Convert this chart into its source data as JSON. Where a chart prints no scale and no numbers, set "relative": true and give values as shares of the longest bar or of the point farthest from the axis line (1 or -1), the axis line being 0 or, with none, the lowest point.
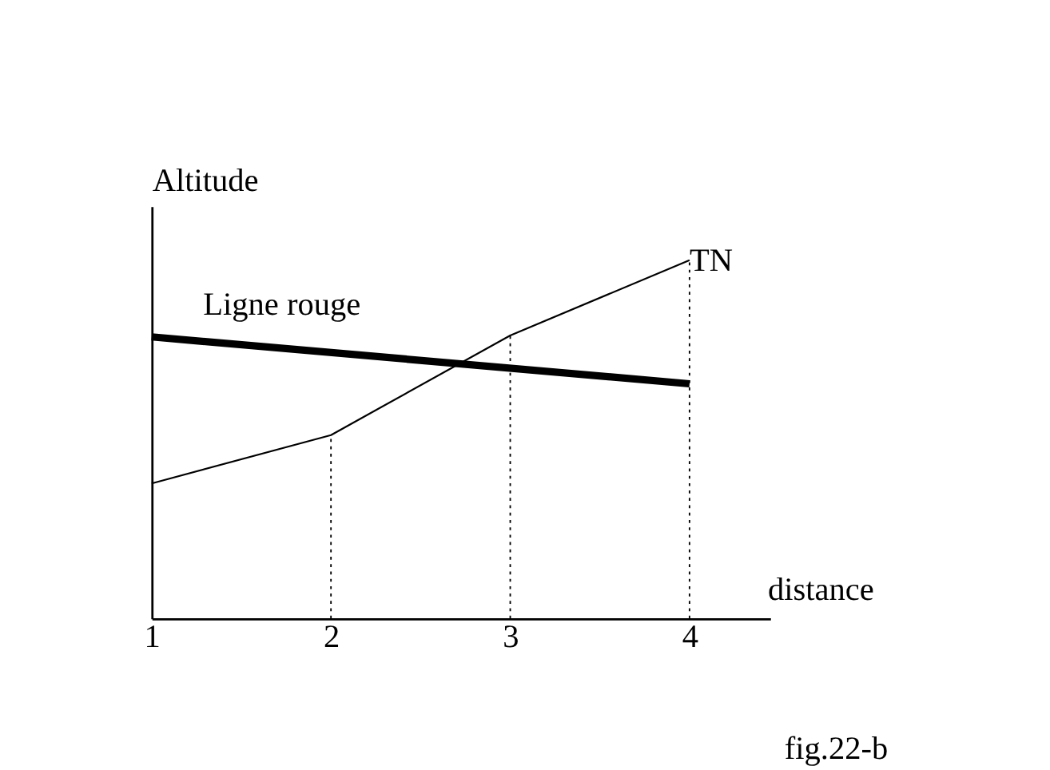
{
  "chart_data": {
    "type": "line",
    "xlabel": "distance",
    "ylabel": "Altitude",
    "relative": true,
    "x": [
      1,
      2,
      3,
      4
    ],
    "xlim": [
      1,
      4.45
    ],
    "xticks": [
      1,
      2,
      3,
      4
    ],
    "legend": false,
    "marker": "none",
    "line_style": "solid",
    "series": [
      {
        "name": "TN",
        "color": "#000000",
        "values": [
          0.377,
          0.512,
          0.79,
          1
        ]
      },
      {
        "name": "Ligne rouge",
        "color": "#000000",
        "x": [
          1,
          4
        ],
        "values": [
          0.786,
          0.655
        ]
      }
    ],
    "ref_lines": [
      {
        "axis": "x",
        "value": 2,
        "line_style": "dotted",
        "color": "#000000"
      },
      {
        "axis": "x",
        "value": 3,
        "line_style": "dotted",
        "color": "#000000"
      },
      {
        "axis": "x",
        "value": 4,
        "line_style": "dotted",
        "color": "#000000"
      }
    ],
    "annotations": [
      "fig.22-b"
    ]
  }
}
